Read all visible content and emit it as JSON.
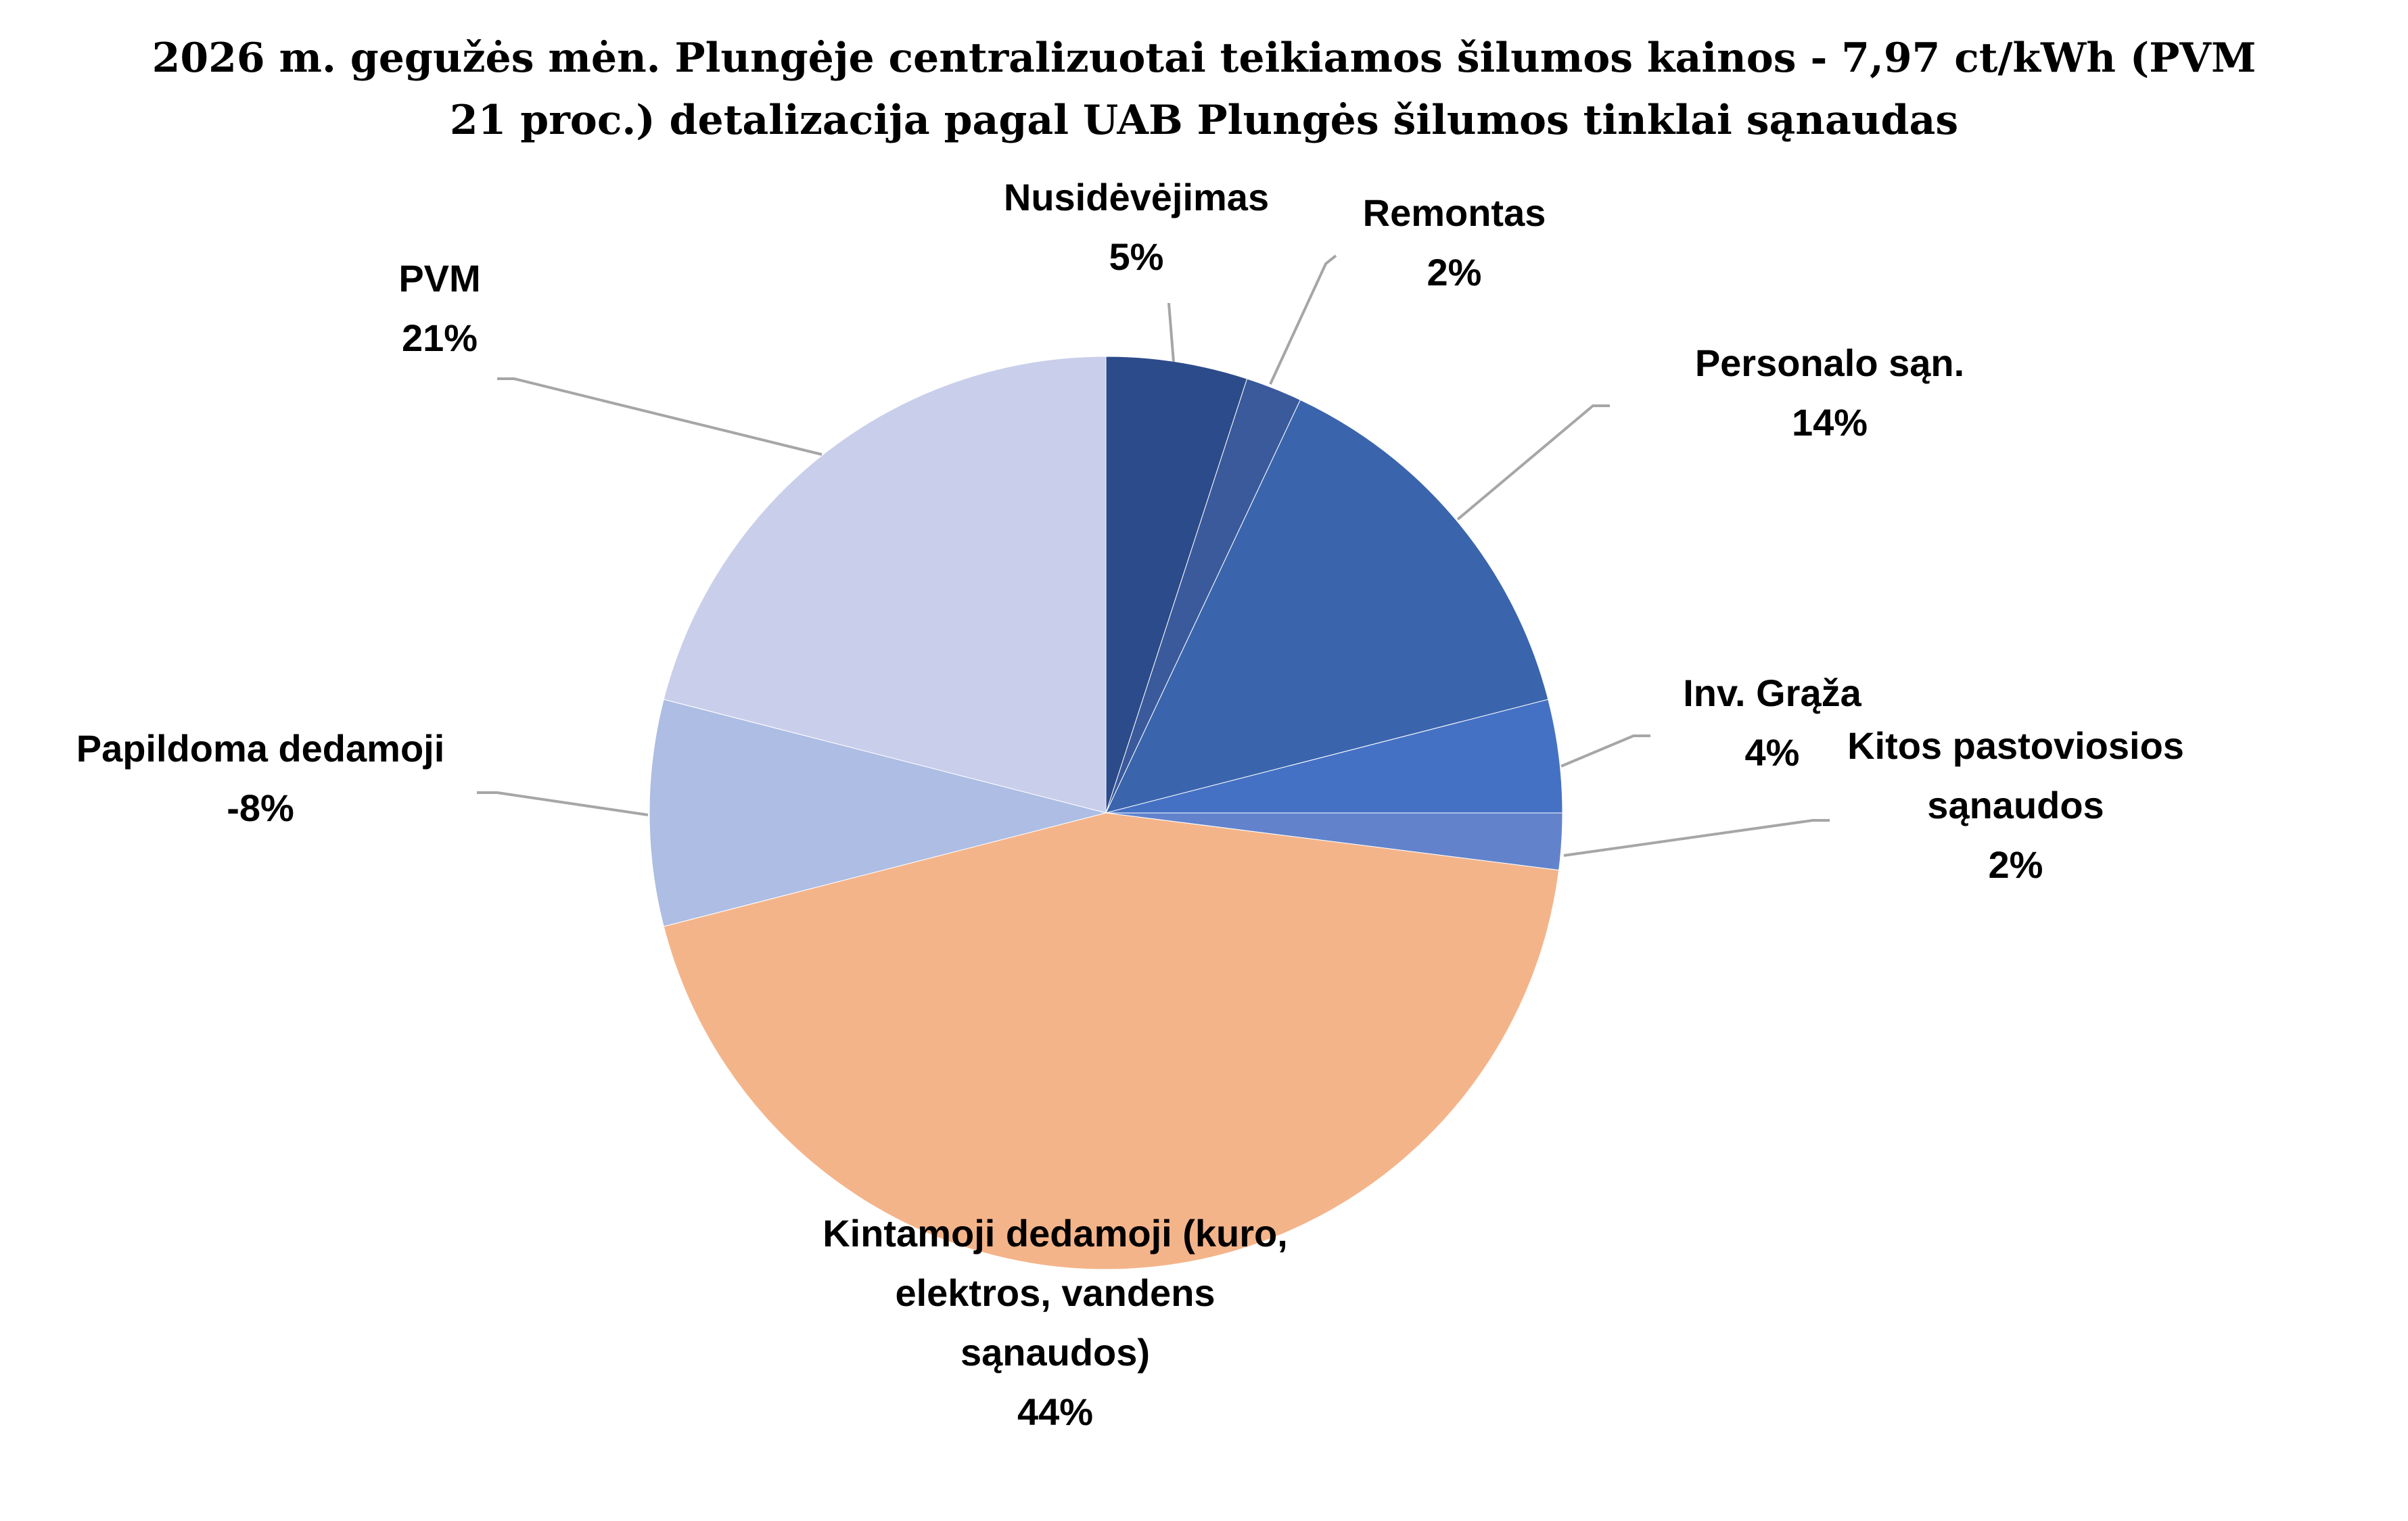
{
  "chart_data": {
    "type": "pie",
    "title_lines": [
      "2026 m. gegužės mėn. Plungėje centralizuotai teikiamos šilumos kainos - 7,97 ct/kWh (PVM",
      "21 proc.) detalizacija pagal UAB Plungės šilumos tinklai sąnaudas"
    ],
    "slices": [
      {
        "label": [
          "Nusidėvėjimas"
        ],
        "pct_label": "5%",
        "value": 5,
        "color": "#2c4b8a"
      },
      {
        "label": [
          "Remontas"
        ],
        "pct_label": "2%",
        "value": 2,
        "color": "#3a5a9c"
      },
      {
        "label": [
          "Personalo sąn."
        ],
        "pct_label": "14%",
        "value": 14,
        "color": "#3a65ad"
      },
      {
        "label": [
          "Inv. Grąža"
        ],
        "pct_label": "4%",
        "value": 4,
        "color": "#4571c4"
      },
      {
        "label": [
          "Kitos pastoviosios",
          "sąnaudos"
        ],
        "pct_label": "2%",
        "value": 2,
        "color": "#6283cc"
      },
      {
        "label": [
          "Kintamoji dedamoji (kuro,",
          "elektros, vandens",
          "sąnaudos)"
        ],
        "pct_label": "44%",
        "value": 44,
        "color": "#f4b48a"
      },
      {
        "label": [
          "Papildoma dedamoji"
        ],
        "pct_label": "-8%",
        "value": -8,
        "color": "#adbde3"
      },
      {
        "label": [
          "PVM"
        ],
        "pct_label": "21%",
        "value": 21,
        "color": "#c9ceeb"
      }
    ]
  }
}
